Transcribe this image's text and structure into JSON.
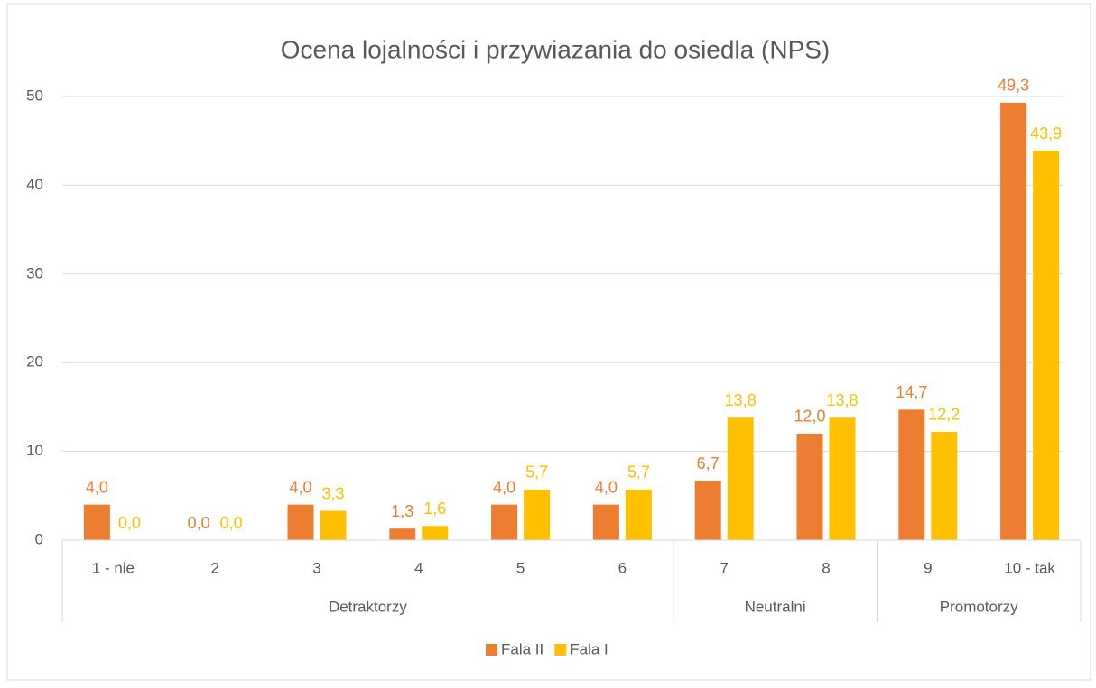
{
  "chart_data": {
    "type": "bar",
    "title": "Ocena lojalności i przywiazania do osiedla (NPS)",
    "groups": [
      {
        "name": "Detraktorzy",
        "categories": [
          "1 - nie",
          "2",
          "3",
          "4",
          "5",
          "6"
        ]
      },
      {
        "name": "Neutralni",
        "categories": [
          "7",
          "8"
        ]
      },
      {
        "name": "Promotorzy",
        "categories": [
          "9",
          "10 - tak"
        ]
      }
    ],
    "series": [
      {
        "name": "Fala II",
        "color": "#ed7d31",
        "values": [
          4.0,
          0.0,
          4.0,
          1.3,
          4.0,
          4.0,
          6.7,
          12.0,
          14.7,
          49.3
        ],
        "value_labels": [
          "4,0",
          "0,0",
          "4,0",
          "1,3",
          "4,0",
          "4,0",
          "6,7",
          "12,0",
          "14,7",
          "49,3"
        ]
      },
      {
        "name": "Fala I",
        "color": "#ffc000",
        "values": [
          0.0,
          0.0,
          3.3,
          1.6,
          5.7,
          5.7,
          13.8,
          13.8,
          12.2,
          43.9
        ],
        "value_labels": [
          "0,0",
          "0,0",
          "3,3",
          "1,6",
          "5,7",
          "5,7",
          "13,8",
          "13,8",
          "12,2",
          "43,9"
        ]
      }
    ],
    "ylim": [
      0,
      50
    ],
    "yticks": [
      0,
      10,
      20,
      30,
      40,
      50
    ],
    "grid": true,
    "legend": "bottom"
  }
}
